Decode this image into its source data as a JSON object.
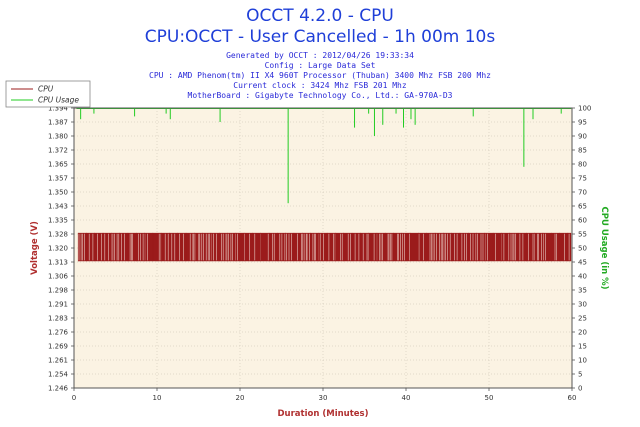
{
  "chart_data": {
    "type": "line",
    "title": "OCCT 4.2.0 - CPU",
    "subtitle": "CPU:OCCT - User Cancelled - 1h 00m 10s",
    "info_lines": [
      "Generated by OCCT : 2012/04/26 19:33:34",
      "Config : Large Data Set",
      "CPU : AMD Phenom(tm) II X4 960T Processor (Thuban) 3400 Mhz FSB 200 Mhz",
      "Current clock : 3424 Mhz FSB 201 Mhz",
      "MotherBoard : Gigabyte Technology Co., Ltd.: GA-970A-D3"
    ],
    "xlabel": "Duration (Minutes)",
    "ylabel_left": "Voltage (V)",
    "ylabel_right": "CPU Usage (in %)",
    "xlim": [
      0,
      60
    ],
    "ylim_left": [
      1.246,
      1.394
    ],
    "ylim_right": [
      0,
      100
    ],
    "x_ticks": [
      "0",
      "10",
      "20",
      "30",
      "40",
      "50",
      "60"
    ],
    "y_ticks_left": [
      "1.394",
      "1.387",
      "1.380",
      "1.372",
      "1.365",
      "1.357",
      "1.350",
      "1.343",
      "1.335",
      "1.328",
      "1.320",
      "1.313",
      "1.306",
      "1.298",
      "1.291",
      "1.283",
      "1.276",
      "1.269",
      "1.261",
      "1.254",
      "1.246"
    ],
    "y_ticks_right": [
      "100",
      "95",
      "90",
      "85",
      "80",
      "75",
      "70",
      "65",
      "60",
      "55",
      "50",
      "45",
      "40",
      "35",
      "30",
      "25",
      "20",
      "15",
      "10",
      "5",
      "0"
    ],
    "legend_position": "top-left",
    "grid": true,
    "colors": {
      "voltage": "#9b1b1b",
      "usage": "#22cc22",
      "plot_bg": "#fbf3e3",
      "grid": "#c8c0b0",
      "title": "#1f3fd8"
    },
    "series": [
      {
        "name": "CPU",
        "axis": "left",
        "note": "voltage oscillates rapidly between low and high levels throughout run",
        "low": 1.313,
        "high": 1.328,
        "x": [
          0.5,
          1.5,
          2.5,
          3.5,
          4.5,
          5.5,
          6.5,
          7.5,
          8.5,
          9.5,
          10.5,
          11.5,
          12.5,
          13.5,
          14.5,
          15.5,
          16.5,
          17.5,
          18.5,
          19.5,
          20.5,
          21.5,
          22.5,
          23.5,
          24.5,
          25.5,
          26.5,
          27.5,
          28.5,
          29.5,
          30.5,
          31.5,
          32.5,
          33.5,
          34.5,
          35.5,
          36.5,
          37.5,
          38.5,
          39.5,
          40.5,
          41.5,
          42.5,
          43.5,
          44.5,
          45.5,
          46.5,
          47.5,
          48.5,
          49.5,
          50.5,
          51.5,
          52.5,
          53.5,
          54.5,
          55.5,
          56.5,
          57.5,
          58.5,
          59.5
        ]
      },
      {
        "name": "CPU Usage",
        "axis": "right",
        "baseline": 100,
        "dips": [
          {
            "x": 0.8,
            "y": 96
          },
          {
            "x": 2.4,
            "y": 98
          },
          {
            "x": 7.3,
            "y": 97
          },
          {
            "x": 11.1,
            "y": 98
          },
          {
            "x": 11.6,
            "y": 96
          },
          {
            "x": 17.6,
            "y": 95
          },
          {
            "x": 25.8,
            "y": 66
          },
          {
            "x": 33.8,
            "y": 93
          },
          {
            "x": 35.5,
            "y": 98
          },
          {
            "x": 36.2,
            "y": 90
          },
          {
            "x": 37.2,
            "y": 94
          },
          {
            "x": 38.8,
            "y": 98
          },
          {
            "x": 39.7,
            "y": 93
          },
          {
            "x": 40.6,
            "y": 96
          },
          {
            "x": 41.1,
            "y": 94
          },
          {
            "x": 48.1,
            "y": 97
          },
          {
            "x": 54.2,
            "y": 79
          },
          {
            "x": 55.3,
            "y": 96
          },
          {
            "x": 58.7,
            "y": 98
          }
        ]
      }
    ]
  }
}
